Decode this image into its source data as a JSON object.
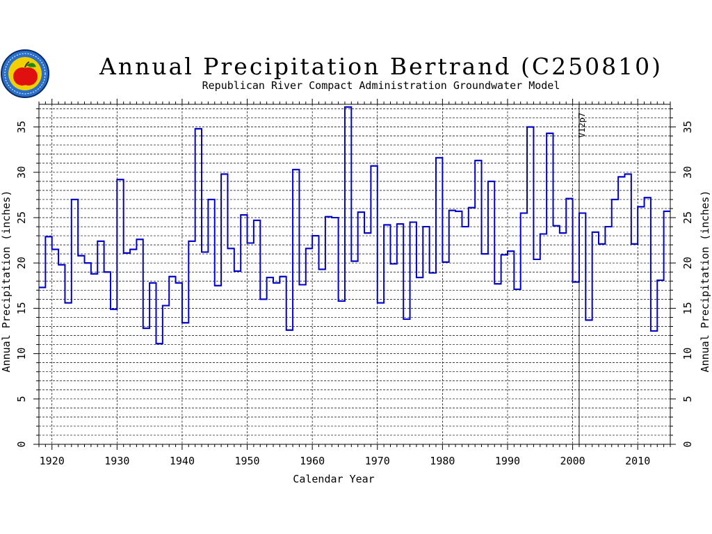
{
  "header": {
    "title": "Annual Precipitation Bertrand (C250810)",
    "subtitle": "Republican River Compact Administration Groundwater Model"
  },
  "logo": {
    "icon": "apple-seal-icon"
  },
  "colors": {
    "series": "#0000c8",
    "grid": "#000000",
    "axis": "#000000"
  },
  "chart_data": {
    "type": "line",
    "step": true,
    "ylabel": "Annual Precipitation (inches)",
    "ylabel_right": "Annual Precipitation (inches)",
    "xlabel": "Calendar Year",
    "xlim": [
      1918,
      2015
    ],
    "ylim": [
      0,
      37.5
    ],
    "x_ticks": [
      1920,
      1930,
      1940,
      1950,
      1960,
      1970,
      1980,
      1990,
      2000,
      2010
    ],
    "y_ticks": [
      0,
      5,
      10,
      15,
      20,
      25,
      30,
      35
    ],
    "grid": true,
    "annotation": {
      "text": "V12p7",
      "x": 2001
    },
    "series": [
      {
        "x": [
          1918,
          1919,
          1920,
          1921,
          1922,
          1923,
          1924,
          1925,
          1926,
          1927,
          1928,
          1929,
          1930,
          1931,
          1932,
          1933,
          1934,
          1935,
          1936,
          1937,
          1938,
          1939,
          1940,
          1941,
          1942,
          1943,
          1944,
          1945,
          1946,
          1947,
          1948,
          1949,
          1950,
          1951,
          1952,
          1953,
          1954,
          1955,
          1956,
          1957,
          1958,
          1959,
          1960,
          1961,
          1962,
          1963,
          1964,
          1965,
          1966,
          1967,
          1968,
          1969,
          1970,
          1971,
          1972,
          1973,
          1974,
          1975,
          1976,
          1977,
          1978,
          1979,
          1980,
          1981,
          1982,
          1983,
          1984,
          1985,
          1986,
          1987,
          1988,
          1989,
          1990,
          1991,
          1992,
          1993,
          1994,
          1995,
          1996,
          1997,
          1998,
          1999,
          2000,
          2001,
          2002,
          2003,
          2004,
          2005,
          2006,
          2007,
          2008,
          2009,
          2010,
          2011,
          2012,
          2013,
          2014
        ],
        "values": [
          17.3,
          22.9,
          21.5,
          19.8,
          15.6,
          27.0,
          20.8,
          20.0,
          18.8,
          22.4,
          19.0,
          14.9,
          29.2,
          21.1,
          21.5,
          22.6,
          12.8,
          17.8,
          11.1,
          15.3,
          18.5,
          17.8,
          13.4,
          22.4,
          34.8,
          21.2,
          27.0,
          17.5,
          29.8,
          21.6,
          19.1,
          25.3,
          22.2,
          24.7,
          16.0,
          18.4,
          17.8,
          18.5,
          12.6,
          30.3,
          17.6,
          21.6,
          23.0,
          19.3,
          25.1,
          25.0,
          15.8,
          37.2,
          20.2,
          25.6,
          23.3,
          30.7,
          15.6,
          24.2,
          19.9,
          24.3,
          13.8,
          24.5,
          18.4,
          24.0,
          18.9,
          31.6,
          20.1,
          25.8,
          25.7,
          24.0,
          26.1,
          31.3,
          21.0,
          29.0,
          17.7,
          20.9,
          21.3,
          17.1,
          25.5,
          35.0,
          20.4,
          23.2,
          34.3,
          24.1,
          23.3,
          27.1,
          17.9,
          25.5,
          13.7,
          23.4,
          22.1,
          24.0,
          27.0,
          29.5,
          29.8,
          22.1,
          26.2,
          27.2,
          12.5,
          18.1,
          25.7
        ]
      }
    ]
  }
}
